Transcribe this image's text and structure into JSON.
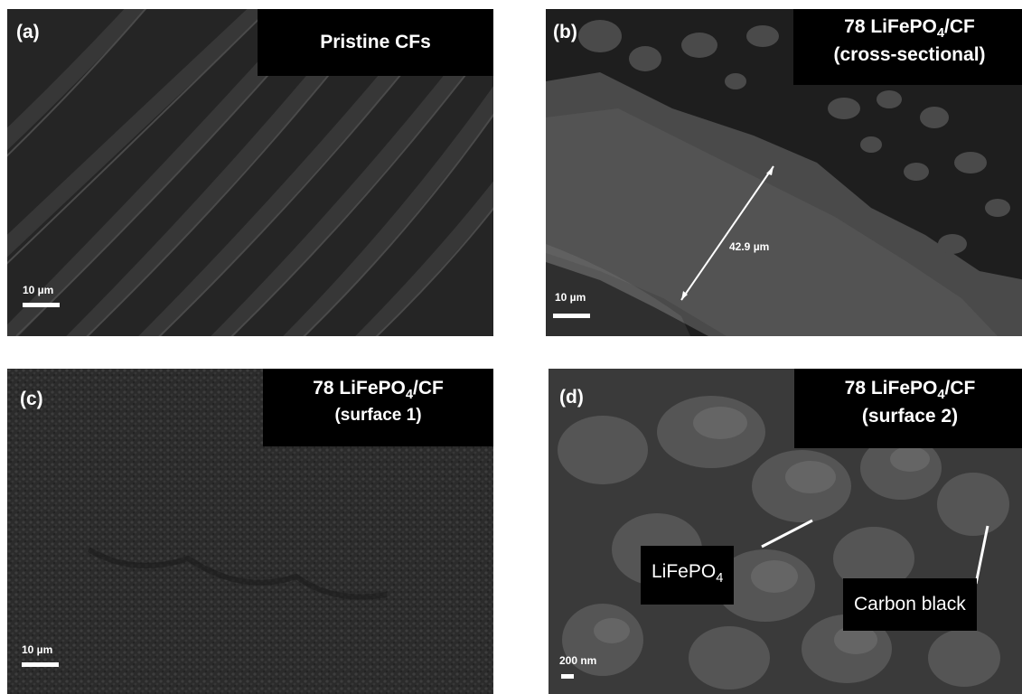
{
  "panels": {
    "a": {
      "label": "(a)",
      "title": "Pristine CFs",
      "scale": "10 µm"
    },
    "b": {
      "label": "(b)",
      "title_line1_pre": "78 LiFePO",
      "title_sub": "4",
      "title_line1_post": "/CF",
      "title_line2": "(cross-sectional)",
      "scale": "10 µm",
      "measurement": "42.9 µm"
    },
    "c": {
      "label": "(c)",
      "title_line1_pre": "78 LiFePO",
      "title_sub": "4",
      "title_line1_post": "/CF",
      "title_line2": "(surface 1)",
      "scale": "10 µm"
    },
    "d": {
      "label": "(d)",
      "title_line1_pre": "78 LiFePO",
      "title_sub": "4",
      "title_line1_post": "/CF",
      "title_line2": "(surface 2)",
      "scale": "200 nm",
      "callout1_pre": "LiFePO",
      "callout1_sub": "4",
      "callout2": "Carbon black"
    }
  },
  "colors": {
    "panel_bg": "#2a2a2a",
    "label_box": "#000000",
    "text": "#ffffff"
  }
}
